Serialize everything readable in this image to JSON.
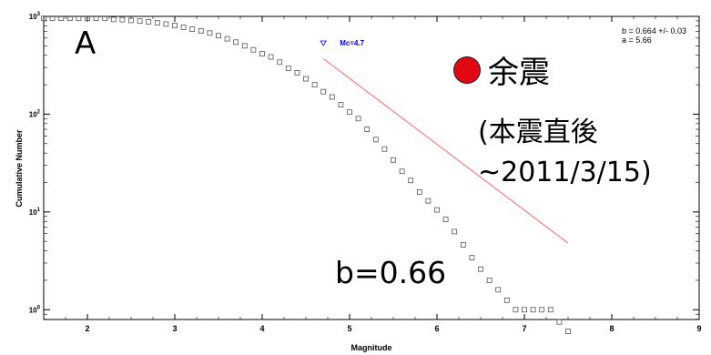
{
  "chart_data": {
    "type": "scatter",
    "title": "",
    "xlabel": "Magnitude",
    "ylabel": "Cumulative Number",
    "xlim": [
      1.5,
      9
    ],
    "ylim_log10": [
      -0.1,
      3
    ],
    "y_scale": "log",
    "x_ticks": [
      "2",
      "3",
      "4",
      "5",
      "6",
      "7",
      "8",
      "9"
    ],
    "y_ticks": [
      {
        "value": 0,
        "base": "10",
        "exp": "0"
      },
      {
        "value": 1,
        "base": "10",
        "exp": "1"
      },
      {
        "value": 2,
        "base": "10",
        "exp": "2"
      },
      {
        "value": 3,
        "base": "10",
        "exp": "3"
      }
    ],
    "grid": false,
    "series": [
      {
        "kind": "points",
        "marker": "square",
        "x": [
          1.5,
          1.6,
          1.7,
          1.8,
          1.9,
          2.0,
          2.1,
          2.2,
          2.3,
          2.4,
          2.5,
          2.6,
          2.7,
          2.8,
          2.9,
          3.0,
          3.1,
          3.2,
          3.3,
          3.4,
          3.5,
          3.6,
          3.7,
          3.8,
          3.9,
          4.0,
          4.1,
          4.2,
          4.3,
          4.4,
          4.5,
          4.6,
          4.7,
          4.8,
          4.9,
          5.0,
          5.1,
          5.2,
          5.3,
          5.4,
          5.5,
          5.6,
          5.7,
          5.8,
          5.9,
          6.0,
          6.1,
          6.2,
          6.3,
          6.4,
          6.5,
          6.6,
          6.7,
          6.8,
          6.9,
          7.0,
          7.1,
          7.2,
          7.3,
          7.4,
          7.5
        ],
        "y": [
          955,
          955,
          955,
          955,
          955,
          955,
          955,
          955,
          930,
          925,
          910,
          895,
          880,
          860,
          835,
          805,
          775,
          740,
          710,
          675,
          635,
          590,
          545,
          500,
          455,
          415,
          385,
          340,
          295,
          265,
          230,
          200,
          170,
          150,
          125,
          105,
          90,
          70,
          55,
          44,
          34,
          26,
          21,
          16,
          13,
          10.5,
          8.4,
          6.3,
          4.6,
          3.4,
          2.6,
          2.0,
          1.6,
          1.25,
          1.0,
          1.0,
          1.0,
          1.0,
          1.0,
          0.75,
          0.6
        ]
      },
      {
        "kind": "fit",
        "color": "#ff6666",
        "x": [
          4.7,
          7.5
        ],
        "y": [
          370,
          4.8
        ]
      }
    ],
    "annotations": [
      {
        "text": "Mc=4.7",
        "x": 4.7,
        "color": "#0000ff"
      }
    ]
  },
  "stats": {
    "b_line": "b = 0.664 +/- 0.03",
    "a_line": "a = 5.66"
  },
  "colors": {
    "marker": "#555555",
    "fit_line": "#ff6666",
    "mc_marker": "#0000ff",
    "legend_dot": "#e30613"
  },
  "panel_label": "A",
  "legend": {
    "label": "余震",
    "note_lines": [
      "(本震直後",
      "~2011/3/15)"
    ]
  },
  "b_annotation": "b=0.66"
}
